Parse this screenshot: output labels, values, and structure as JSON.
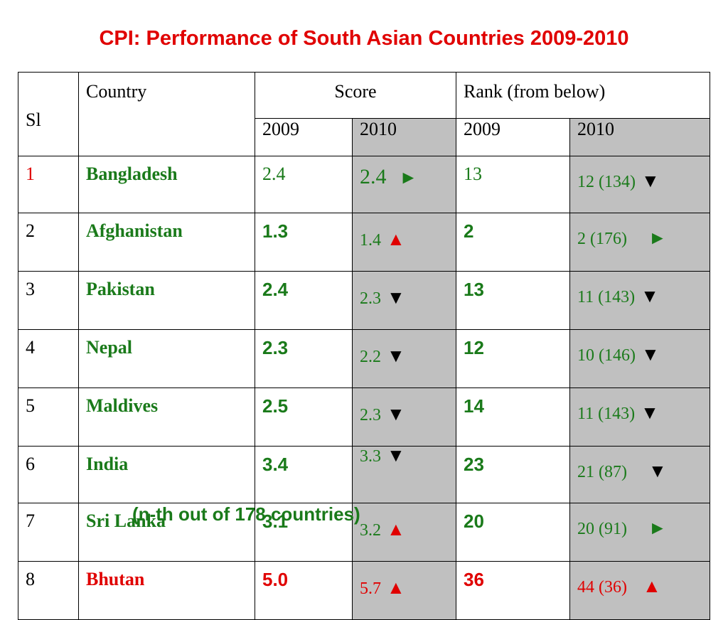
{
  "title": "CPI: Performance of South Asian Countries 2009-2010",
  "footnote": "(n-th out of 178 countries)",
  "headers": {
    "sl": "Sl",
    "country": "Country",
    "score": "Score",
    "rank": "Rank (from below)",
    "score_2009": "2009",
    "score_2010": "2010",
    "rank_2009": "2009",
    "rank_2010": "2010"
  },
  "rows": [
    {
      "sl": "1",
      "country": "Bangladesh",
      "score2009": "2.4",
      "score2010": "2.4",
      "score2010_arrow": "►",
      "rank2009": "13",
      "rank2010": "12 (134)",
      "rank2010_arrow": "▼"
    },
    {
      "sl": "2",
      "country": "Afghanistan",
      "score2009": "1.3",
      "score2010": "1.4",
      "score2010_arrow": "▲",
      "rank2009": "2",
      "rank2010": "2 (176)",
      "rank2010_arrow": "►"
    },
    {
      "sl": "3",
      "country": "Pakistan",
      "score2009": "2.4",
      "score2010": "2.3",
      "score2010_arrow": "▼",
      "rank2009": "13",
      "rank2010": "11 (143)",
      "rank2010_arrow": "▼"
    },
    {
      "sl": "4",
      "country": "Nepal",
      "score2009": "2.3",
      "score2010": "2.2",
      "score2010_arrow": "▼",
      "rank2009": "12",
      "rank2010": "10 (146)",
      "rank2010_arrow": "▼"
    },
    {
      "sl": "5",
      "country": "Maldives",
      "score2009": "2.5",
      "score2010": "2.3",
      "score2010_arrow": "▼",
      "rank2009": "14",
      "rank2010": "11 (143)",
      "rank2010_arrow": "▼"
    },
    {
      "sl": "6",
      "country": "India",
      "score2009": "3.4",
      "score2010": "3.3",
      "score2010_arrow": "▼",
      "rank2009": "23",
      "rank2010": "21 (87)",
      "rank2010_arrow": "▼"
    },
    {
      "sl": "7",
      "country": "Sri Lanka",
      "score2009": "3.1",
      "score2010": "3.2",
      "score2010_arrow": "▲",
      "rank2009": "20",
      "rank2010": "20 (91)",
      "rank2010_arrow": "►"
    },
    {
      "sl": "8",
      "country": "Bhutan",
      "score2009": "5.0",
      "score2010": "5.7",
      "score2010_arrow": "▲",
      "rank2009": "36",
      "rank2010": "44 (36)",
      "rank2010_arrow": "▲"
    }
  ],
  "colors": {
    "title": "#e00000",
    "country": "#1a7a1a",
    "highlight": "#e00000",
    "shaded_column": "#c0c0c0"
  }
}
